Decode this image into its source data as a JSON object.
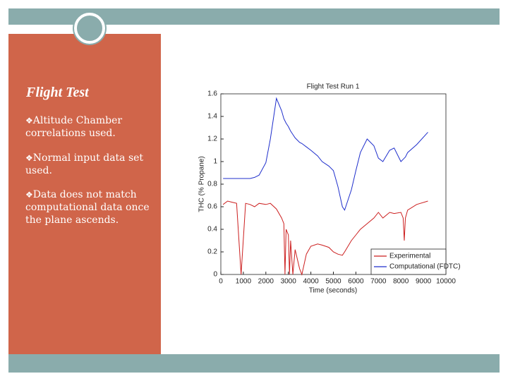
{
  "slide": {
    "title": "Flight Test",
    "bullets": [
      "Altitude Chamber correlations used.",
      "Normal input data set used.",
      "Data does not match computational data once the plane ascends."
    ]
  },
  "chart_data": {
    "type": "line",
    "title": "Flight Test Run 1",
    "x_label": "Time (seconds)",
    "y_label": "THC (% Propane)",
    "x": [
      100,
      300,
      500,
      700,
      900,
      1100,
      1300,
      1500,
      1700,
      2000,
      2200,
      2470,
      2700,
      2800,
      2850,
      2900,
      3000,
      3050,
      3100,
      3200,
      3300,
      3500,
      3600,
      3800,
      4000,
      4300,
      4500,
      4800,
      5000,
      5200,
      5400,
      5500,
      5800,
      6000,
      6200,
      6500,
      6800,
      7000,
      7200,
      7500,
      7700,
      8000,
      8100,
      8150,
      8200,
      8300,
      8700,
      9200
    ],
    "series": [
      {
        "name": "Experimental",
        "color": "#cc1f1f",
        "values": [
          0.62,
          0.65,
          0.64,
          0.63,
          0.0,
          0.63,
          0.62,
          0.6,
          0.63,
          0.62,
          0.63,
          0.58,
          0.5,
          0.45,
          0.0,
          0.4,
          0.35,
          0.0,
          0.3,
          0.0,
          0.22,
          0.05,
          0.0,
          0.18,
          0.25,
          0.27,
          0.26,
          0.24,
          0.2,
          0.18,
          0.17,
          0.2,
          0.3,
          0.35,
          0.4,
          0.45,
          0.5,
          0.55,
          0.5,
          0.55,
          0.54,
          0.55,
          0.5,
          0.3,
          0.5,
          0.57,
          0.62,
          0.65
        ]
      },
      {
        "name": "Computational (FDTC)",
        "color": "#1f2fcc",
        "values": [
          0.85,
          0.85,
          0.85,
          0.85,
          0.85,
          0.85,
          0.85,
          0.86,
          0.88,
          0.99,
          1.2,
          1.56,
          1.45,
          1.38,
          1.36,
          1.34,
          1.31,
          1.29,
          1.27,
          1.24,
          1.21,
          1.17,
          1.16,
          1.13,
          1.1,
          1.05,
          1.0,
          0.96,
          0.92,
          0.78,
          0.6,
          0.57,
          0.75,
          0.92,
          1.08,
          1.2,
          1.14,
          1.03,
          1.0,
          1.1,
          1.12,
          1.0,
          1.02,
          1.03,
          1.04,
          1.08,
          1.15,
          1.26
        ]
      }
    ],
    "xlim": [
      0,
      10000
    ],
    "xticks": [
      0,
      1000,
      2000,
      3000,
      4000,
      5000,
      6000,
      7000,
      8000,
      9000,
      10000
    ],
    "ylim": [
      0,
      1.6
    ],
    "yticks": [
      0,
      0.2,
      0.4,
      0.6,
      0.8,
      1,
      1.2,
      1.4,
      1.6
    ],
    "grid": false,
    "legend": "lower right"
  }
}
